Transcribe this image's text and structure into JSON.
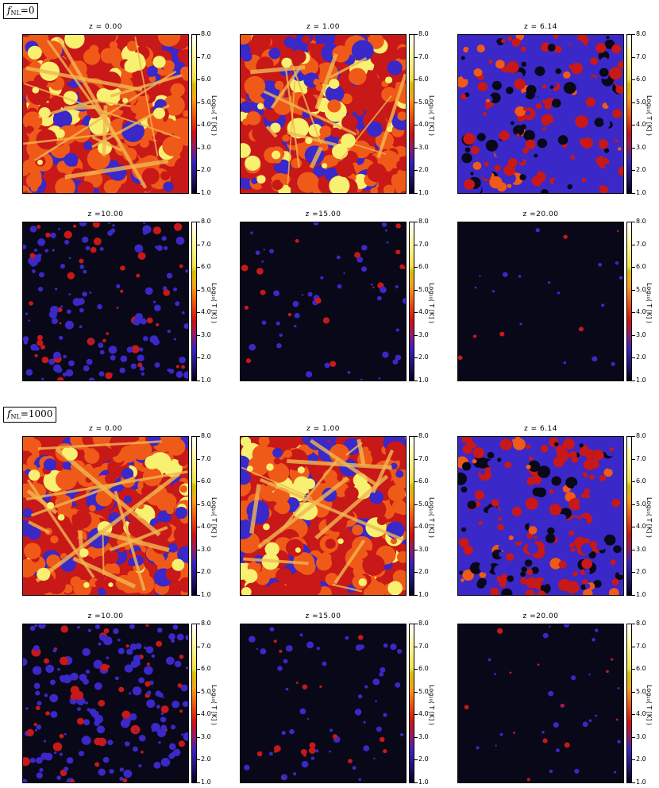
{
  "sections": [
    {
      "label_prefix": "f",
      "label_sub": "NL",
      "label_value": "=0"
    },
    {
      "label_prefix": "f",
      "label_sub": "NL",
      "label_value": "=1000"
    }
  ],
  "panels": [
    {
      "title": "z = 0.00"
    },
    {
      "title": "z = 1.00"
    },
    {
      "title": "z = 6.14"
    },
    {
      "title": "z =10.00"
    },
    {
      "title": "z =15.00"
    },
    {
      "title": "z =20.00"
    },
    {
      "title": "z = 0.00"
    },
    {
      "title": "z = 1.00"
    },
    {
      "title": "z = 6.14"
    },
    {
      "title": "z =10.00"
    },
    {
      "title": "z =15.00"
    },
    {
      "title": "z =20.00"
    }
  ],
  "colorbar": {
    "ticks": [
      "8.0",
      "7.0",
      "6.0",
      "5.0",
      "4.0",
      "3.0",
      "2.0",
      "1.0"
    ],
    "axis_label": "Log₁₀( T [K] )"
  },
  "colors": {
    "hot": "#f8f070",
    "warm": "#f05a18",
    "mid": "#c81818",
    "cool": "#3a28c8",
    "cold": "#080818"
  }
}
